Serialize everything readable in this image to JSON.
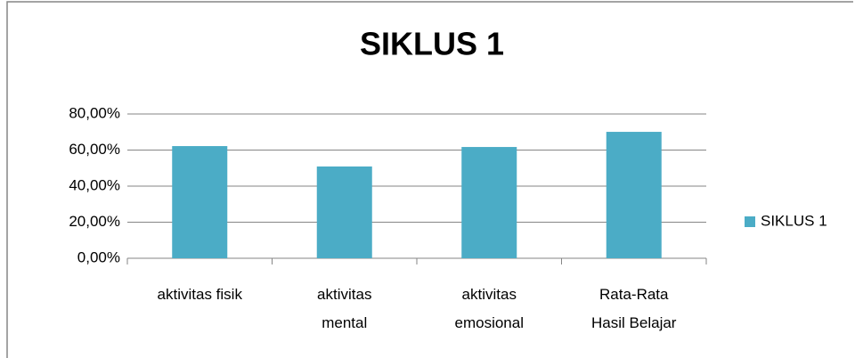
{
  "chart_data": {
    "type": "bar",
    "title": "SIKLUS 1",
    "categories": [
      "aktivitas fisik",
      "aktivitas\nmental",
      "aktivitas\nemosional",
      "Rata-Rata\nHasil Belajar"
    ],
    "series": [
      {
        "name": "SIKLUS 1",
        "color": "#4bacc6",
        "values": [
          62.2,
          50.9,
          61.7,
          70.1
        ]
      }
    ],
    "ylim": [
      0,
      80
    ],
    "yticks": [
      {
        "value": 0,
        "label": "0,00%"
      },
      {
        "value": 20,
        "label": "20,00%"
      },
      {
        "value": 40,
        "label": "40,00%"
      },
      {
        "value": 60,
        "label": "60,00%"
      },
      {
        "value": 80,
        "label": "80,00%"
      }
    ],
    "grid": true,
    "legend": "right"
  }
}
